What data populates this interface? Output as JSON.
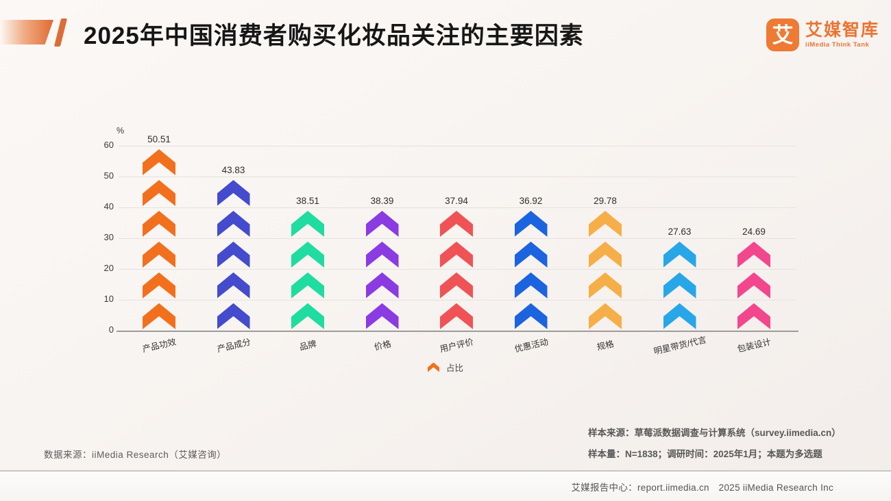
{
  "header": {
    "title": "2025年中国消费者购买化妆品关注的主要因素",
    "logo": {
      "glyph": "艾",
      "brand": "艾媒智库",
      "subbrand": "iiMedia Think Tank",
      "accent_color": "#EB7433"
    }
  },
  "chart_data": {
    "type": "bar",
    "title": "2025年中国消费者购买化妆品关注的主要因素",
    "categories": [
      "产品功效",
      "产品成分",
      "品牌",
      "价格",
      "用户评价",
      "优惠活动",
      "规格",
      "明星带货/代言",
      "包装设计"
    ],
    "values": [
      50.51,
      43.83,
      38.51,
      38.39,
      37.94,
      36.92,
      29.78,
      27.63,
      24.69
    ],
    "colors": [
      "#F2701D",
      "#444BCD",
      "#1FDCA0",
      "#8A3BE2",
      "#EF5356",
      "#1C64DF",
      "#F6AF48",
      "#27A7E8",
      "#F2478C"
    ],
    "chevron_counts": [
      6,
      5,
      4,
      4,
      4,
      4,
      4,
      3,
      3
    ],
    "xlabel": "",
    "ylabel": "%",
    "ylim": [
      0,
      60
    ],
    "yticks": [
      0,
      10,
      20,
      30,
      40,
      50,
      60
    ],
    "grid": true,
    "legend": {
      "label": "占比",
      "color": "#F2701D",
      "position": "bottom",
      "marker": "chevron-up"
    }
  },
  "footnotes": {
    "source_left": "数据来源：iiMedia Research（艾媒咨询）",
    "sample_source": "样本来源：草莓派数据调查与计算系统（survey.iimedia.cn）",
    "sample_info": "样本量：N=1838；调研时间：2025年1月；本题为多选题"
  },
  "footer": {
    "text": "艾媒报告中心：report.iimedia.cn　2025 iiMedia Research Inc"
  }
}
